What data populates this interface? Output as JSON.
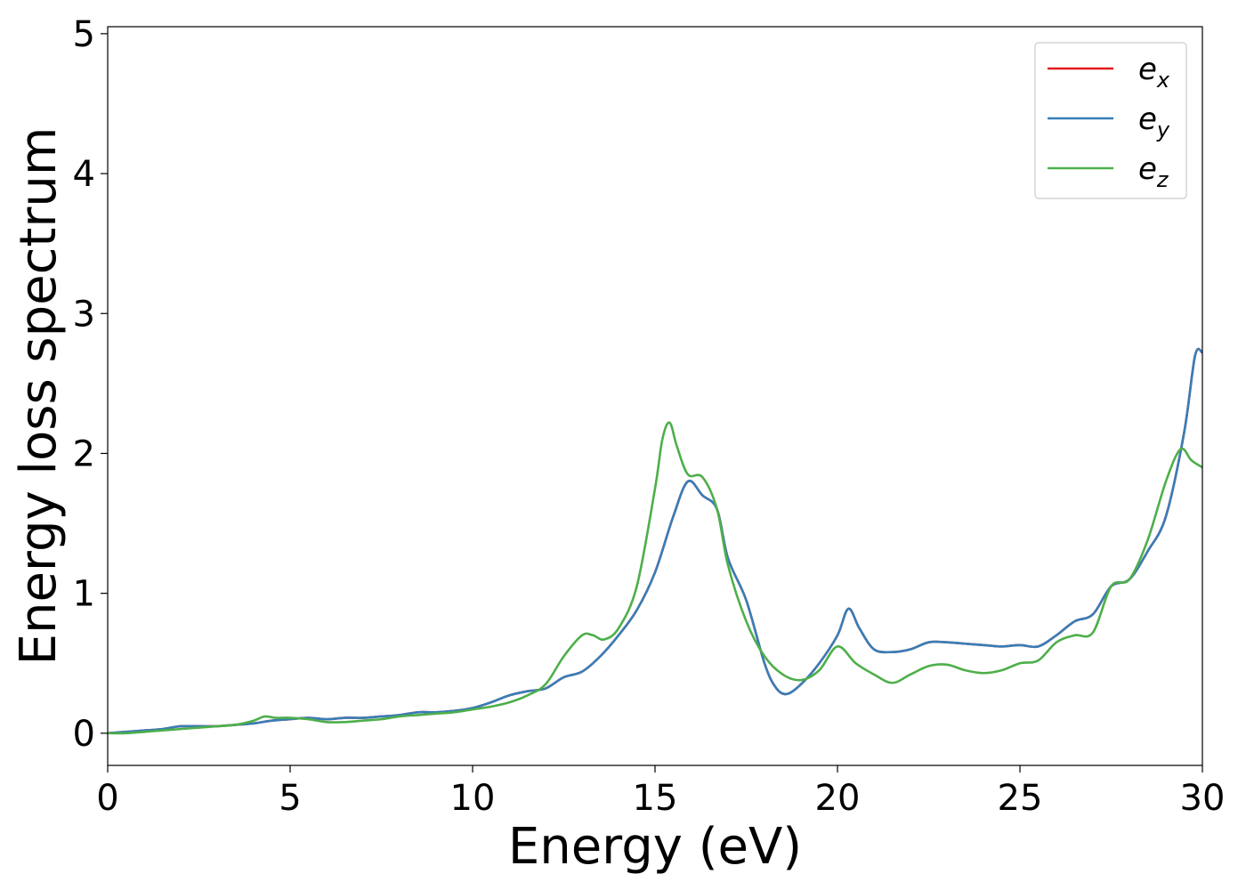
{
  "chart_data": {
    "type": "line",
    "xlabel": "Energy (eV)",
    "ylabel": "Energy loss spectrum",
    "xlim": [
      0,
      30
    ],
    "ylim": [
      -0.23,
      5.05
    ],
    "x_ticks": [
      "0",
      "5",
      "10",
      "15",
      "20",
      "25",
      "30"
    ],
    "y_ticks": [
      "0",
      "1",
      "2",
      "3",
      "4",
      "5"
    ],
    "grid": false,
    "legend_position": "top-right",
    "series": [
      {
        "name": "e_x",
        "legend_base": "e",
        "legend_sub": "x",
        "color": "#e41a1c",
        "x": [
          0,
          0.5,
          1,
          1.5,
          2,
          2.5,
          3,
          3.5,
          4,
          4.5,
          5,
          5.5,
          6,
          6.5,
          7,
          7.5,
          8,
          8.5,
          9,
          9.5,
          10,
          10.5,
          11,
          11.5,
          12,
          12.5,
          13,
          13.5,
          14,
          14.5,
          15,
          15.5,
          15.9,
          16.3,
          16.7,
          17,
          17.5,
          18,
          18.3,
          18.6,
          19,
          19.5,
          20,
          20.3,
          20.6,
          21,
          21.5,
          22,
          22.5,
          23,
          23.5,
          24,
          24.5,
          25,
          25.5,
          26,
          26.5,
          27,
          27.5,
          28,
          28.5,
          29,
          29.5,
          29.8,
          30
        ],
        "values": [
          0.0,
          0.01,
          0.02,
          0.03,
          0.05,
          0.05,
          0.05,
          0.06,
          0.07,
          0.09,
          0.1,
          0.11,
          0.1,
          0.11,
          0.11,
          0.12,
          0.13,
          0.15,
          0.15,
          0.16,
          0.18,
          0.22,
          0.27,
          0.3,
          0.32,
          0.4,
          0.44,
          0.55,
          0.7,
          0.88,
          1.15,
          1.55,
          1.8,
          1.7,
          1.6,
          1.25,
          0.95,
          0.5,
          0.33,
          0.28,
          0.35,
          0.5,
          0.7,
          0.89,
          0.75,
          0.6,
          0.58,
          0.6,
          0.65,
          0.65,
          0.64,
          0.63,
          0.62,
          0.63,
          0.62,
          0.7,
          0.8,
          0.85,
          1.05,
          1.1,
          1.3,
          1.55,
          2.15,
          2.7,
          2.72
        ]
      },
      {
        "name": "e_y",
        "legend_base": "e",
        "legend_sub": "y",
        "color": "#377eb8",
        "x": [
          0,
          0.5,
          1,
          1.5,
          2,
          2.5,
          3,
          3.5,
          4,
          4.5,
          5,
          5.5,
          6,
          6.5,
          7,
          7.5,
          8,
          8.5,
          9,
          9.5,
          10,
          10.5,
          11,
          11.5,
          12,
          12.5,
          13,
          13.5,
          14,
          14.5,
          15,
          15.5,
          15.9,
          16.3,
          16.7,
          17,
          17.5,
          18,
          18.3,
          18.6,
          19,
          19.5,
          20,
          20.3,
          20.6,
          21,
          21.5,
          22,
          22.5,
          23,
          23.5,
          24,
          24.5,
          25,
          25.5,
          26,
          26.5,
          27,
          27.5,
          28,
          28.5,
          29,
          29.5,
          29.8,
          30
        ],
        "values": [
          0.0,
          0.01,
          0.02,
          0.03,
          0.05,
          0.05,
          0.05,
          0.06,
          0.07,
          0.09,
          0.1,
          0.11,
          0.1,
          0.11,
          0.11,
          0.12,
          0.13,
          0.15,
          0.15,
          0.16,
          0.18,
          0.22,
          0.27,
          0.3,
          0.32,
          0.4,
          0.44,
          0.55,
          0.7,
          0.88,
          1.15,
          1.55,
          1.8,
          1.7,
          1.6,
          1.25,
          0.95,
          0.5,
          0.33,
          0.28,
          0.35,
          0.5,
          0.7,
          0.89,
          0.75,
          0.6,
          0.58,
          0.6,
          0.65,
          0.65,
          0.64,
          0.63,
          0.62,
          0.63,
          0.62,
          0.7,
          0.8,
          0.85,
          1.05,
          1.1,
          1.3,
          1.55,
          2.15,
          2.7,
          2.72
        ]
      },
      {
        "name": "e_z",
        "legend_base": "e",
        "legend_sub": "z",
        "color": "#4daf4a",
        "x": [
          0,
          0.5,
          1,
          1.5,
          2,
          2.5,
          3,
          3.5,
          4,
          4.3,
          4.6,
          5,
          5.5,
          6,
          6.5,
          7,
          7.5,
          8,
          8.5,
          9,
          9.5,
          10,
          10.5,
          11,
          11.5,
          12,
          12.5,
          13,
          13.3,
          13.6,
          14,
          14.5,
          15,
          15.2,
          15.4,
          15.6,
          15.9,
          16.3,
          16.7,
          17,
          17.5,
          18,
          18.5,
          19,
          19.5,
          20,
          20.5,
          21,
          21.5,
          22,
          22.5,
          23,
          23.5,
          24,
          24.5,
          25,
          25.5,
          26,
          26.5,
          27,
          27.5,
          28,
          28.5,
          29,
          29.4,
          29.7,
          30
        ],
        "values": [
          0.0,
          0.0,
          0.01,
          0.02,
          0.03,
          0.04,
          0.05,
          0.06,
          0.09,
          0.12,
          0.11,
          0.11,
          0.1,
          0.08,
          0.08,
          0.09,
          0.1,
          0.12,
          0.13,
          0.14,
          0.15,
          0.17,
          0.19,
          0.22,
          0.27,
          0.35,
          0.55,
          0.7,
          0.7,
          0.67,
          0.75,
          1.05,
          1.75,
          2.1,
          2.22,
          2.05,
          1.85,
          1.83,
          1.6,
          1.2,
          0.8,
          0.55,
          0.42,
          0.38,
          0.45,
          0.62,
          0.5,
          0.42,
          0.36,
          0.42,
          0.48,
          0.49,
          0.45,
          0.43,
          0.45,
          0.5,
          0.52,
          0.65,
          0.7,
          0.72,
          1.05,
          1.1,
          1.38,
          1.8,
          2.03,
          1.95,
          1.9
        ]
      }
    ]
  }
}
